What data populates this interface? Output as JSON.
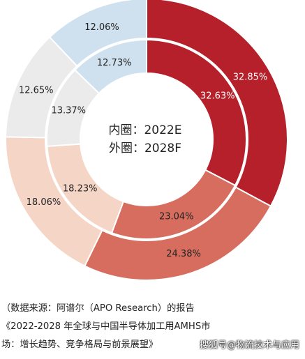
{
  "chart_data": {
    "type": "donut",
    "center_lines": [
      "内圈：2022E",
      "外圈：2028F"
    ],
    "rings": [
      {
        "name": "内圈：2022E",
        "values": [
          32.63,
          23.04,
          18.23,
          13.37,
          12.73
        ],
        "labels": [
          "32.63%",
          "23.04%",
          "18.23%",
          "13.37%",
          "12.73%"
        ]
      },
      {
        "name": "外圈：2028F",
        "values": [
          32.85,
          24.38,
          18.06,
          12.65,
          12.06
        ],
        "labels": [
          "32.85%",
          "24.38%",
          "18.06%",
          "12.65%",
          "12.06%"
        ]
      }
    ],
    "colors": [
      "#b5202b",
      "#d76d5e",
      "#f4d5c6",
      "#ebebeb",
      "#cfe1ee"
    ],
    "label_colors": [
      "#ffffff",
      "#222222",
      "#222222",
      "#222222",
      "#222222"
    ]
  },
  "source": {
    "line1": "（数据来源：阿谱尔（APO  Research）的报告",
    "line2": "《2022-2028 年全球与中国半导体加工用AMHS市",
    "line3": "场：增长趋势、竞争格局与前景展望》"
  },
  "watermark": "搜狐号@物流技术与应用"
}
